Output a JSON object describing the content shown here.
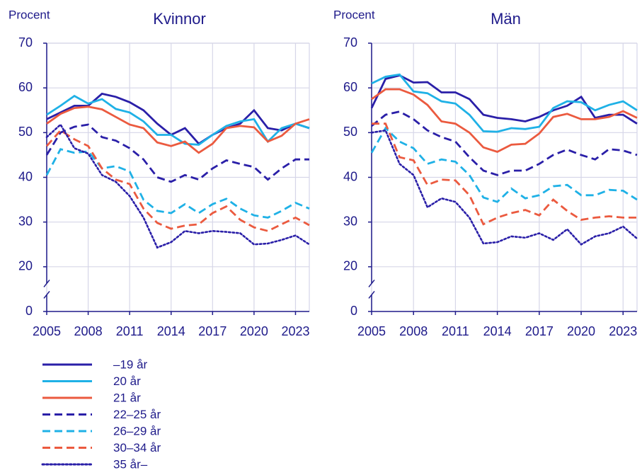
{
  "chart_data": [
    {
      "type": "line",
      "title": "Kvinnor",
      "y_label": "Procent",
      "x": [
        2005,
        2006,
        2007,
        2008,
        2009,
        2010,
        2011,
        2012,
        2013,
        2014,
        2015,
        2016,
        2017,
        2018,
        2019,
        2020,
        2021,
        2022,
        2023,
        2024
      ],
      "xlim": [
        2005,
        2024
      ],
      "xticks": [
        2005,
        2008,
        2011,
        2014,
        2017,
        2020,
        2023
      ],
      "ylim": [
        0,
        70
      ],
      "yticks": [
        0,
        20,
        30,
        40,
        50,
        60,
        70
      ],
      "axis_break": true,
      "grid": true,
      "series": [
        {
          "name": "–19 år",
          "color": "#2a1fa8",
          "dash": "solid",
          "values": [
            53,
            54.5,
            56,
            56,
            58.7,
            58,
            56.8,
            55,
            52,
            49.5,
            51,
            47.5,
            49.5,
            51,
            52,
            55,
            51,
            50.5,
            52,
            51
          ]
        },
        {
          "name": "20 år",
          "color": "#1fb1e6",
          "dash": "solid",
          "values": [
            54,
            56,
            58.2,
            56.5,
            57.5,
            55.3,
            54.5,
            52.5,
            49.5,
            49.5,
            47.5,
            47.3,
            49.5,
            51.5,
            52.5,
            53,
            48,
            51,
            52,
            51
          ]
        },
        {
          "name": "21 år",
          "color": "#eb5a3f",
          "dash": "solid",
          "values": [
            52,
            54.2,
            55.5,
            55.8,
            55.2,
            53.5,
            51.8,
            51,
            47.8,
            47,
            48,
            45.5,
            47.5,
            51,
            51.5,
            51.2,
            48,
            49.3,
            52,
            53
          ]
        },
        {
          "name": "22–25 år",
          "color": "#2a1fa8",
          "dash": "dashed",
          "values": [
            45,
            50,
            51.3,
            51.8,
            49,
            48.2,
            46.5,
            44,
            40,
            39,
            40.5,
            39.5,
            42,
            43.8,
            43,
            42.3,
            39.5,
            42,
            44,
            44
          ]
        },
        {
          "name": "26–29 år",
          "color": "#1fb1e6",
          "dash": "dashed",
          "values": [
            40.5,
            46.3,
            45.5,
            45.8,
            42,
            42.5,
            41.3,
            35,
            32.5,
            32,
            34,
            32,
            34,
            35.2,
            33,
            31.5,
            31,
            32.5,
            34.3,
            33
          ]
        },
        {
          "name": "30–34 år",
          "color": "#eb5a3f",
          "dash": "dashed",
          "values": [
            47,
            50.5,
            48.5,
            47,
            42,
            39.5,
            38.5,
            33,
            29.8,
            28.5,
            29.2,
            29.5,
            32,
            33.5,
            30.5,
            28.8,
            28,
            29.5,
            31,
            29.3
          ]
        },
        {
          "name": "35 år–",
          "color": "#2a1fa8",
          "dash": "dotted",
          "values": [
            49,
            51.8,
            46.5,
            45.3,
            40.5,
            39,
            35.8,
            31,
            24.3,
            25.5,
            28,
            27.5,
            28,
            27.8,
            27.5,
            25,
            25.2,
            26,
            27,
            25
          ]
        }
      ]
    },
    {
      "type": "line",
      "title": "Män",
      "y_label": "Procent",
      "x": [
        2005,
        2006,
        2007,
        2008,
        2009,
        2010,
        2011,
        2012,
        2013,
        2014,
        2015,
        2016,
        2017,
        2018,
        2019,
        2020,
        2021,
        2022,
        2023,
        2024
      ],
      "xlim": [
        2005,
        2024
      ],
      "xticks": [
        2005,
        2008,
        2011,
        2014,
        2017,
        2020,
        2023
      ],
      "ylim": [
        0,
        70
      ],
      "yticks": [
        0,
        20,
        30,
        40,
        50,
        60,
        70
      ],
      "axis_break": true,
      "grid": true,
      "series": [
        {
          "color": "#2a1fa8",
          "dash": "solid",
          "values": [
            55.5,
            62,
            62.8,
            61.2,
            61.3,
            59,
            59,
            57.5,
            54,
            53.3,
            53,
            52.5,
            53.5,
            55,
            56,
            58,
            53.3,
            54,
            54,
            52
          ]
        },
        {
          "color": "#1fb1e6",
          "dash": "solid",
          "values": [
            61,
            62.5,
            63,
            59.2,
            58.8,
            57,
            56.5,
            54,
            50.3,
            50.2,
            51,
            50.8,
            51.3,
            55.5,
            57,
            56.8,
            55,
            56.2,
            57,
            55
          ]
        },
        {
          "color": "#eb5a3f",
          "dash": "solid",
          "values": [
            57.5,
            59.7,
            59.7,
            58.5,
            56.2,
            52.5,
            52,
            50,
            46.7,
            45.7,
            47.3,
            47.5,
            49.8,
            53.5,
            54.2,
            53,
            53,
            53.5,
            54.8,
            53.3
          ]
        },
        {
          "color": "#2a1fa8",
          "dash": "dashed",
          "values": [
            51.5,
            54,
            54.7,
            53,
            50.5,
            49,
            48,
            44.5,
            41.5,
            40.5,
            41.5,
            41.5,
            43,
            45,
            46.2,
            45,
            44,
            46.3,
            46,
            45
          ]
        },
        {
          "color": "#1fb1e6",
          "dash": "dashed",
          "values": [
            45.5,
            51,
            48,
            46.5,
            43,
            44,
            43.5,
            40.5,
            35.5,
            34.5,
            37.5,
            35.3,
            36,
            38,
            38.3,
            36,
            36,
            37.2,
            37,
            35
          ]
        },
        {
          "color": "#eb5a3f",
          "dash": "dashed",
          "values": [
            52,
            52,
            44.5,
            43.8,
            38.3,
            39.5,
            39.3,
            36,
            29.5,
            31,
            32,
            32.7,
            31.5,
            35,
            32.5,
            30.5,
            31,
            31.3,
            31,
            31
          ]
        },
        {
          "color": "#2a1fa8",
          "dash": "dotted",
          "values": [
            50,
            50.5,
            43,
            40.5,
            33.3,
            35.3,
            34.5,
            31,
            25.2,
            25.5,
            26.8,
            26.5,
            27.5,
            26,
            28.4,
            25,
            26.8,
            27.5,
            29,
            26.3
          ]
        }
      ]
    }
  ]
}
